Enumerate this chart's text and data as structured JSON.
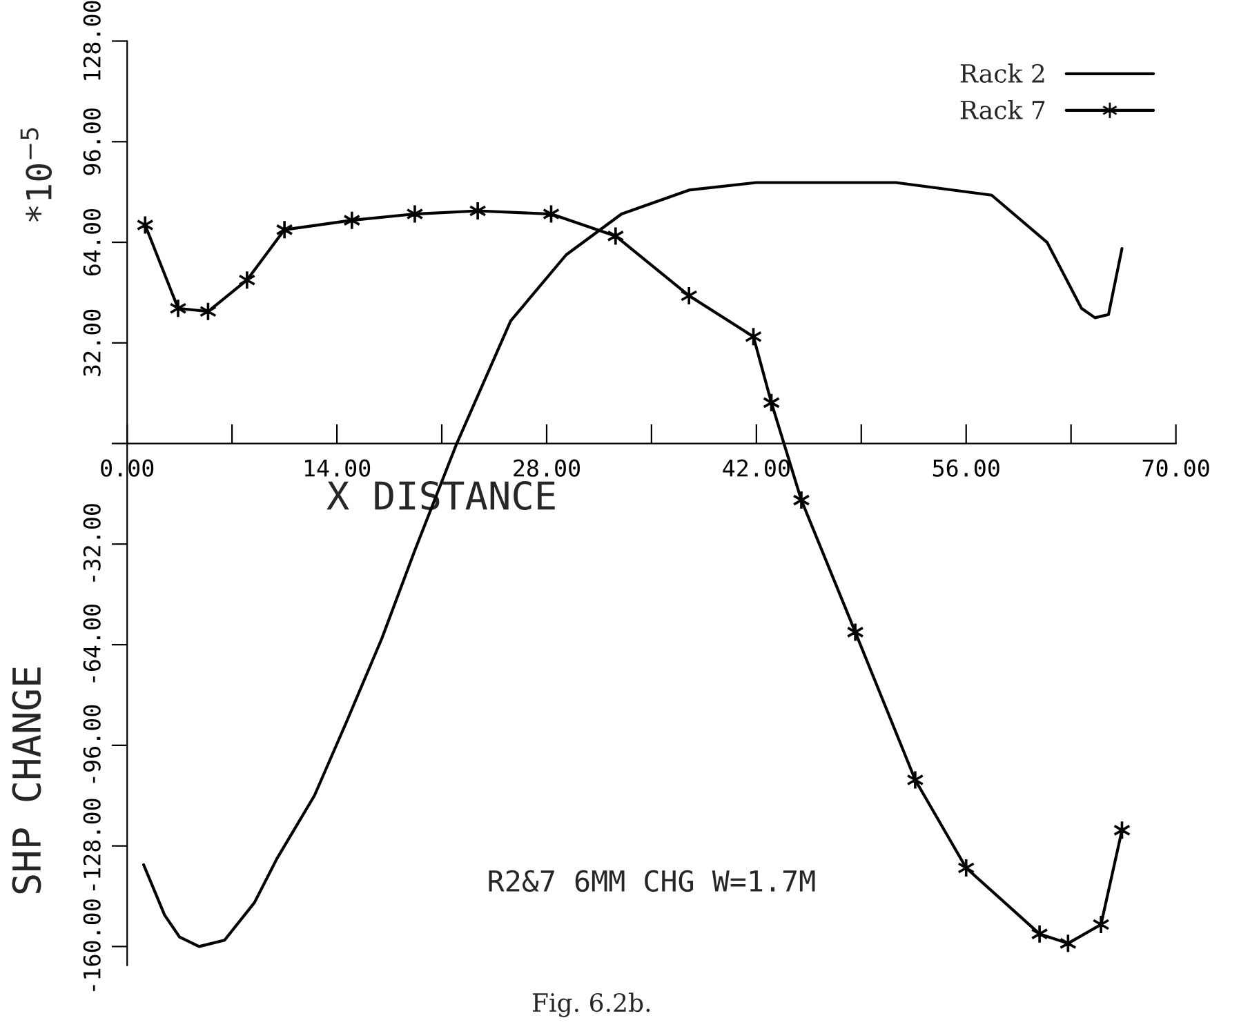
{
  "chart_data": {
    "type": "line",
    "xlabel": "X DISTANCE",
    "ylabel": "SHP CHANGE",
    "annotations": [
      "*10$^{−5}$",
      "R2&7 6MM CHG W=1.7M",
      "Fig. 6.2b."
    ],
    "xlim": [
      0,
      70
    ],
    "xticks": [
      {
        "value": 0,
        "label": "0.00"
      },
      {
        "value": 7,
        "label": null
      },
      {
        "value": 14,
        "label": "14.00"
      },
      {
        "value": 21,
        "label": null
      },
      {
        "value": 28,
        "label": "28.00"
      },
      {
        "value": 35,
        "label": null
      },
      {
        "value": 42,
        "label": "42.00"
      },
      {
        "value": 49,
        "label": null
      },
      {
        "value": 56,
        "label": "56.00"
      },
      {
        "value": 63,
        "label": null
      },
      {
        "value": 70,
        "label": "70.00"
      }
    ],
    "ylim": [
      -166,
      128
    ],
    "yticks": [
      {
        "value": 128,
        "label": "128.00"
      },
      {
        "value": 96,
        "label": "96.00"
      },
      {
        "value": 64,
        "label": "64.00"
      },
      {
        "value": 32,
        "label": "32.00"
      },
      {
        "value": 0,
        "label": null
      },
      {
        "value": -32,
        "label": "-32.00"
      },
      {
        "value": -64,
        "label": "-64.00"
      },
      {
        "value": -96,
        "label": "-96.00"
      },
      {
        "value": -128,
        "label": "-128.00"
      },
      {
        "value": -160,
        "label": "-160.00"
      }
    ],
    "grid": false,
    "legend": "top right",
    "series": [
      {
        "name": "Rack 2",
        "color": "#000000",
        "marker": "none",
        "x": [
          1.1,
          2.5,
          3.5,
          4.8,
          6.5,
          8.5,
          10,
          12.5,
          14.6,
          17,
          19.2,
          22,
          25.6,
          29.3,
          33,
          37.5,
          42,
          51.3,
          57.7,
          61.4,
          63.7,
          64.6,
          65.5,
          66.4
        ],
        "values": [
          -134,
          -150,
          -157,
          -160,
          -158,
          -146,
          -132,
          -112,
          -89,
          -62,
          -34,
          0,
          39,
          60,
          73,
          80.6,
          83,
          83,
          79,
          64,
          43,
          40,
          41,
          62
        ]
      },
      {
        "name": "Rack 7",
        "color": "#000000",
        "marker": "cross",
        "x": [
          1.2,
          3.4,
          5.4,
          8,
          10.5,
          15,
          19.2,
          23.4,
          28.3,
          32.6,
          37.5,
          41.8,
          43,
          45,
          48.6,
          52.6,
          56,
          60.9,
          62.8,
          65,
          66.4
        ],
        "values": [
          69.5,
          43,
          42,
          52,
          68,
          71,
          73,
          74,
          73,
          66,
          47,
          34,
          13,
          -18,
          -60,
          -107,
          -135,
          -156,
          -159,
          -153,
          -123
        ]
      }
    ]
  }
}
